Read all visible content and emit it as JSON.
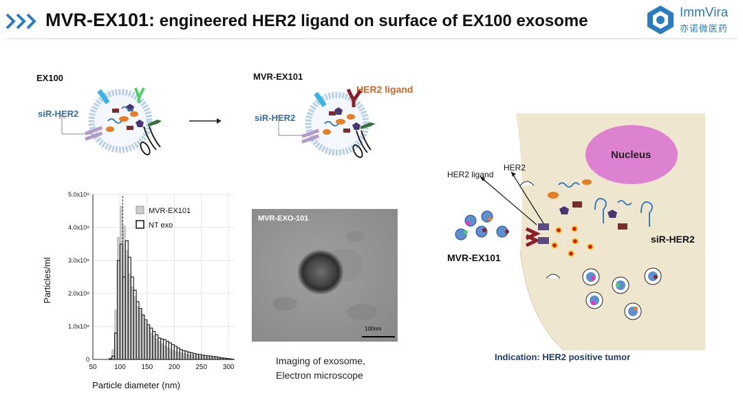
{
  "header": {
    "title_main": "MVR-EX101:",
    "title_rest": " engineered HER2 ligand on surface of EX100 exosome",
    "logo_en": "ImmVira",
    "logo_cn": "亦诺微医药",
    "brand_color": "#2a7bbf"
  },
  "panel_ex100": {
    "title": "EX100",
    "sirna_label": "siR-HER2"
  },
  "panel_mvr": {
    "title": "MVR-EX101",
    "sirna_label": "siR-HER2",
    "ligand_label": "HER2 ligand"
  },
  "em_image": {
    "caption": "MVR-EXO-101",
    "scale_bar": "100nm",
    "note_line1": "Imaging of exosome,",
    "note_line2": "Electron microscope"
  },
  "cell_diagram": {
    "nucleus_label": "Nucleus",
    "ligand_label": "HER2 ligand",
    "receptor_label": "HER2",
    "exosome_label": "MVR-EX101",
    "sirna_label": "siR-HER2",
    "indication": "Indication: HER2 positive tumor"
  },
  "chart_data": {
    "type": "bar",
    "xlabel": "Particle diameter (nm)",
    "ylabel": "Particles/ml",
    "xlim": [
      50,
      310
    ],
    "ylim": [
      0,
      500000000.0
    ],
    "xticks": [
      "50",
      "100",
      "150",
      "200",
      "250",
      "300"
    ],
    "yticks": [
      "0",
      "1.0x10⁸",
      "2.0x10⁸",
      "3.0x10⁸",
      "4.0x10⁸",
      "5.0x10⁸"
    ],
    "ref_line_x": 105,
    "legend_position": "top-right",
    "bin_width": 5,
    "x": [
      80,
      85,
      90,
      95,
      100,
      105,
      110,
      115,
      120,
      125,
      130,
      135,
      140,
      145,
      150,
      155,
      160,
      165,
      170,
      175,
      180,
      185,
      190,
      195,
      200,
      205,
      210,
      215,
      220,
      225,
      230,
      235,
      240,
      245,
      250,
      255,
      260,
      265,
      270,
      275,
      280,
      285,
      290,
      295,
      300,
      305
    ],
    "series": [
      {
        "name": "MVR-EX101",
        "fill": "#cccccc",
        "stroke": "#a8a8a8",
        "values": [
          0.05,
          0.3,
          1.5,
          3.7,
          4.65,
          4.05,
          3.3,
          2.6,
          2.2,
          1.9,
          1.6,
          1.5,
          1.35,
          1.15,
          1.0,
          0.8,
          0.72,
          0.62,
          0.55,
          0.48,
          0.42,
          0.36,
          0.32,
          0.28,
          0.24,
          0.22,
          0.2,
          0.18,
          0.16,
          0.14,
          0.13,
          0.12,
          0.11,
          0.1,
          0.09,
          0.08,
          0.07,
          0.06,
          0.05,
          0.04,
          0.04,
          0.03,
          0.02,
          0.02,
          0.01,
          0.01
        ]
      },
      {
        "name": "NT exo",
        "fill": "none",
        "stroke": "#222222",
        "values": [
          0.02,
          0.1,
          0.8,
          3.0,
          3.5,
          2.5,
          3.6,
          3.1,
          2.5,
          2.1,
          1.75,
          1.55,
          1.35,
          1.2,
          1.05,
          0.95,
          0.85,
          0.75,
          0.65,
          0.62,
          0.6,
          0.55,
          0.5,
          0.45,
          0.4,
          0.35,
          0.3,
          0.27,
          0.25,
          0.22,
          0.2,
          0.18,
          0.16,
          0.15,
          0.13,
          0.12,
          0.11,
          0.1,
          0.09,
          0.08,
          0.06,
          0.05,
          0.04,
          0.03,
          0.02,
          0.01
        ]
      }
    ]
  }
}
